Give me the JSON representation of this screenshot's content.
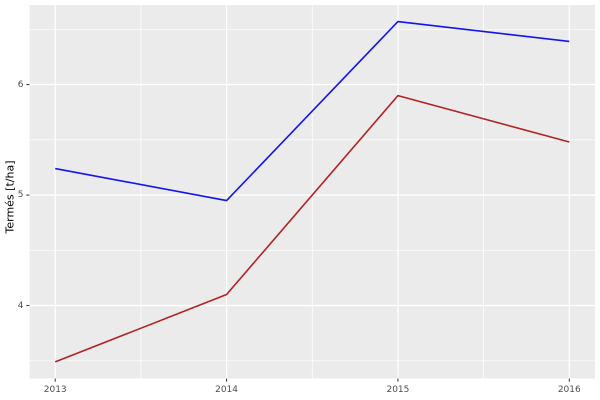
{
  "figure": {
    "background": "#FFFFFF",
    "panel_background": "#EBEBEB",
    "grid_color": "#FFFFFF",
    "tick_mark_color": "#333333",
    "tick_label_color": "#4D4D4D"
  },
  "chart_data": {
    "type": "line",
    "title": "",
    "xlabel": "",
    "ylabel": "Termés [t/ha]",
    "x": [
      2013,
      2014,
      2015,
      2016
    ],
    "series": [
      {
        "name": "blue-series",
        "color": "#1414F0",
        "values": [
          5.24,
          4.95,
          6.57,
          6.39
        ]
      },
      {
        "name": "dark-red-series",
        "color": "#B22222",
        "values": [
          3.49,
          4.1,
          5.9,
          5.48
        ]
      }
    ],
    "x_ticks": [
      "2013",
      "2014",
      "2015",
      "2016"
    ],
    "x_tick_values": [
      2013,
      2014,
      2015,
      2016
    ],
    "x_minor": [
      2013.5,
      2014.5,
      2015.5
    ],
    "y_ticks": [
      "4",
      "5",
      "6"
    ],
    "y_tick_values": [
      4,
      5,
      6
    ],
    "y_minor": [
      3.5,
      4.5,
      5.5,
      6.5
    ],
    "xlim": [
      2012.85,
      2016.15
    ],
    "ylim": [
      3.34,
      6.72
    ],
    "grid": true,
    "legend": "none"
  }
}
